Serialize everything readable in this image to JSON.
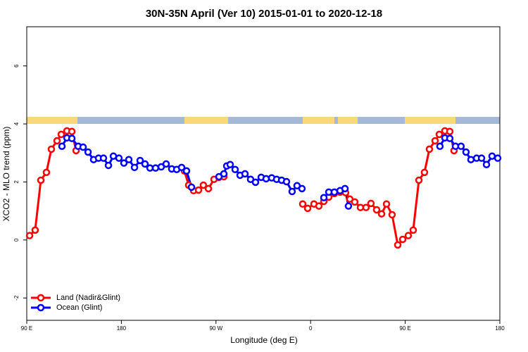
{
  "chart_data": {
    "type": "line",
    "title": "30N-35N April (Ver 10)   2015-01-01 to 2020-12-18",
    "x_label": "Longitude (deg E)",
    "y_label": "XCO2 - MLO trend (ppm)",
    "xlim": [
      90,
      540
    ],
    "xticks": [
      {
        "value": 90,
        "label": "90 E"
      },
      180,
      {
        "value": 270,
        "label": "90 W"
      },
      {
        "value": 360,
        "label": "0"
      },
      {
        "value": 450,
        "label": "90 E"
      },
      {
        "value": 540,
        "label": "180"
      }
    ],
    "ylim": [
      -2.77,
      7.35
    ],
    "yticks": [
      -2,
      0,
      2,
      4,
      6
    ],
    "legend": "bottom-left",
    "series": [
      {
        "name": "Land (Nadir&Glint)",
        "color": "#ff0000",
        "x": [
          92.7,
          98.0,
          103.4,
          108.7,
          113.4,
          118.8,
          122.8,
          128.2,
          132.9,
          136.9,
          null,
          240.0,
          244.0,
          248.7,
          253.4,
          258.0,
          262.8,
          268.1,
          272.8,
          277.5,
          null,
          352.5,
          357.2,
          363.2,
          367.9,
          372.6,
          377.3,
          382.6,
          388.0,
          393.3,
          397.3,
          402.0,
          407.4,
          412.7,
          417.4,
          422.8,
          427.5,
          432.2,
          437.5,
          442.9,
          447.6,
          452.9,
          457.6,
          463.0,
          468.3,
          473.0,
          478.4,
          482.4,
          487.7,
          492.4,
          496.4
        ],
        "values": [
          0.15,
          0.34,
          2.06,
          2.33,
          3.13,
          3.42,
          3.64,
          3.76,
          3.74,
          3.08,
          null,
          2.38,
          1.89,
          1.7,
          1.72,
          1.89,
          1.77,
          2.09,
          2.16,
          2.18,
          null,
          1.24,
          1.09,
          1.24,
          1.17,
          1.33,
          1.48,
          1.6,
          1.65,
          1.63,
          1.41,
          1.31,
          1.12,
          1.12,
          1.26,
          1.04,
          0.9,
          1.24,
          0.87,
          -0.17,
          0.02,
          0.15,
          0.34,
          2.06,
          2.33,
          3.13,
          3.42,
          3.64,
          3.76,
          3.74,
          3.08
        ]
      },
      {
        "name": "Ocean (Glint)",
        "color": "#0000ff",
        "x": [
          123.5,
          128.2,
          132.9,
          138.9,
          143.6,
          148.3,
          153.6,
          158.3,
          163.0,
          167.7,
          172.4,
          177.7,
          182.4,
          187.1,
          192.5,
          197.8,
          202.5,
          207.2,
          212.5,
          217.9,
          222.6,
          227.9,
          232.6,
          237.3,
          242.0,
          246.7,
          null,
          272.8,
          277.5,
          280.2,
          283.5,
          288.2,
          292.9,
          297.6,
          302.9,
          307.6,
          313.0,
          317.7,
          323.0,
          327.7,
          332.4,
          337.1,
          342.4,
          347.1,
          351.8,
          null,
          372.6,
          377.3,
          382.6,
          388.0,
          392.7,
          396.0,
          null,
          483.0,
          487.7,
          492.4,
          497.8,
          503.1,
          507.8,
          512.5,
          517.9,
          522.6,
          527.3,
          532.6,
          538.0
        ],
        "values": [
          3.23,
          3.52,
          3.5,
          3.23,
          3.2,
          3.03,
          2.77,
          2.82,
          2.82,
          2.57,
          2.89,
          2.82,
          2.65,
          2.77,
          2.5,
          2.74,
          2.62,
          2.48,
          2.48,
          2.52,
          2.62,
          2.45,
          2.43,
          2.5,
          2.38,
          1.82,
          null,
          2.18,
          2.28,
          2.55,
          2.6,
          2.43,
          2.23,
          2.28,
          2.09,
          1.99,
          2.16,
          2.11,
          2.14,
          2.09,
          2.06,
          2.01,
          1.67,
          1.87,
          1.77,
          null,
          1.46,
          1.65,
          1.65,
          1.7,
          1.77,
          1.17,
          null,
          3.23,
          3.52,
          3.5,
          3.23,
          3.23,
          3.03,
          2.77,
          2.82,
          2.82,
          2.6,
          2.89,
          2.82
        ]
      }
    ]
  }
}
